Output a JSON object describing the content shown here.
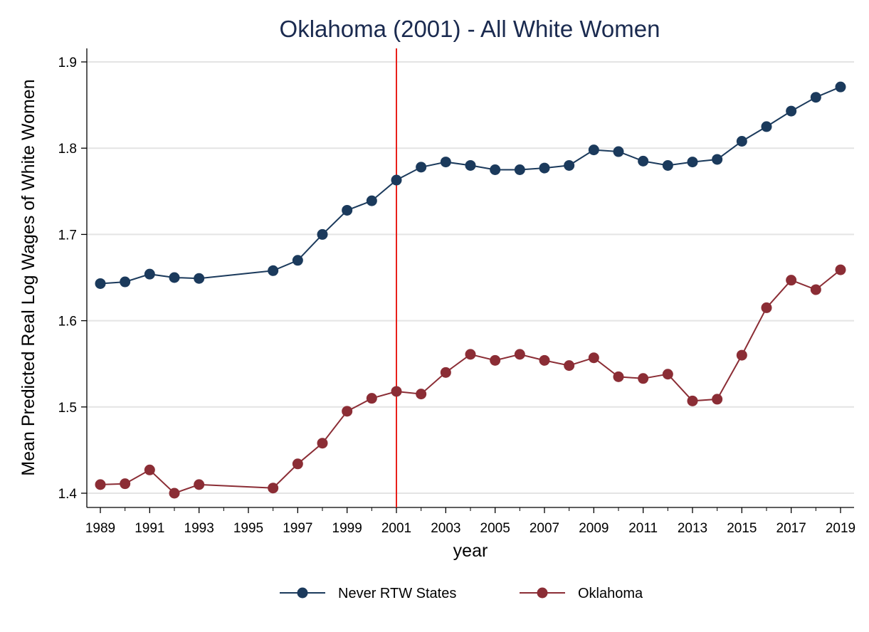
{
  "chart_data": {
    "type": "line",
    "title": "Oklahoma (2001) - All White Women",
    "xlabel": "year",
    "ylabel": "Mean Predicted Real Log Wages of White Women",
    "xlim": [
      1989,
      2019
    ],
    "ylim": [
      1.4,
      1.9
    ],
    "xticks": [
      "1989",
      "1991",
      "1993",
      "1995",
      "1997",
      "1999",
      "2001",
      "2003",
      "2005",
      "2007",
      "2009",
      "2011",
      "2013",
      "2015",
      "2017",
      "2019"
    ],
    "yticks": [
      "1.4",
      "1.5",
      "1.6",
      "1.7",
      "1.8",
      "1.9"
    ],
    "grid": "horizontal",
    "legend_position": "bottom",
    "reference_line": {
      "x": 2001,
      "color": "#e8201a"
    },
    "series": [
      {
        "name": "Never RTW States",
        "color": "#1b3a5c",
        "x": [
          1989,
          1990,
          1991,
          1992,
          1993,
          1996,
          1997,
          1998,
          1999,
          2000,
          2001,
          2002,
          2003,
          2004,
          2005,
          2006,
          2007,
          2008,
          2009,
          2010,
          2011,
          2012,
          2013,
          2014,
          2015,
          2016,
          2017,
          2018,
          2019
        ],
        "values": [
          1.643,
          1.645,
          1.654,
          1.65,
          1.649,
          1.658,
          1.67,
          1.7,
          1.728,
          1.739,
          1.763,
          1.778,
          1.784,
          1.78,
          1.775,
          1.775,
          1.777,
          1.78,
          1.798,
          1.796,
          1.785,
          1.78,
          1.784,
          1.787,
          1.808,
          1.825,
          1.843,
          1.859,
          1.871
        ]
      },
      {
        "name": "Oklahoma",
        "color": "#8b2d35",
        "x": [
          1989,
          1990,
          1991,
          1992,
          1993,
          1996,
          1997,
          1998,
          1999,
          2000,
          2001,
          2002,
          2003,
          2004,
          2005,
          2006,
          2007,
          2008,
          2009,
          2010,
          2011,
          2012,
          2013,
          2014,
          2015,
          2016,
          2017,
          2018,
          2019
        ],
        "values": [
          1.41,
          1.411,
          1.427,
          1.4,
          1.41,
          1.406,
          1.434,
          1.458,
          1.495,
          1.51,
          1.518,
          1.515,
          1.54,
          1.561,
          1.554,
          1.561,
          1.554,
          1.548,
          1.557,
          1.535,
          1.533,
          1.538,
          1.507,
          1.509,
          1.56,
          1.615,
          1.647,
          1.636,
          1.659
        ]
      }
    ]
  }
}
